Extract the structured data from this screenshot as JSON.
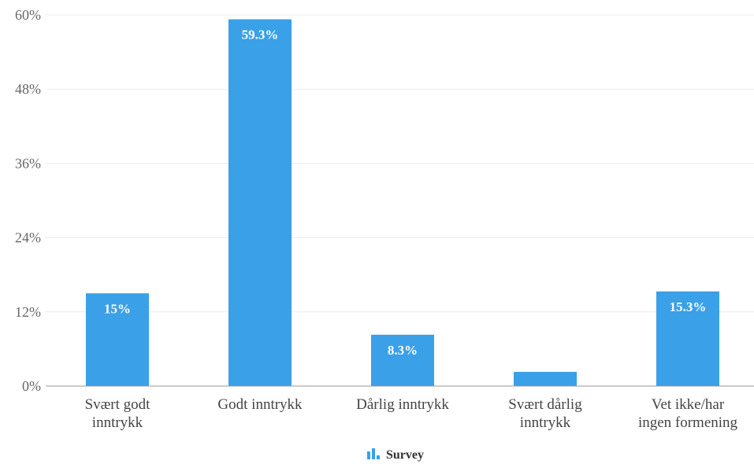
{
  "chart_data": {
    "type": "bar",
    "categories": [
      [
        "Svært godt",
        "inntrykk"
      ],
      [
        "Godt inntrykk"
      ],
      [
        "Dårlig inntrykk"
      ],
      [
        "Svært dårlig",
        "inntrykk"
      ],
      [
        "Vet ikke/har",
        "ingen formening"
      ]
    ],
    "series": [
      {
        "name": "Survey",
        "values": [
          15,
          59.3,
          8.3,
          2.3,
          15.3
        ],
        "labels": [
          "15%",
          "59.3%",
          "8.3%",
          "",
          "15.3%"
        ],
        "color": "#3aa0e8"
      }
    ],
    "y_ticks": [
      "0%",
      "12%",
      "24%",
      "36%",
      "48%",
      "60%"
    ],
    "ylim": [
      0,
      60
    ],
    "grid": true,
    "legend_position": "bottom-center"
  }
}
